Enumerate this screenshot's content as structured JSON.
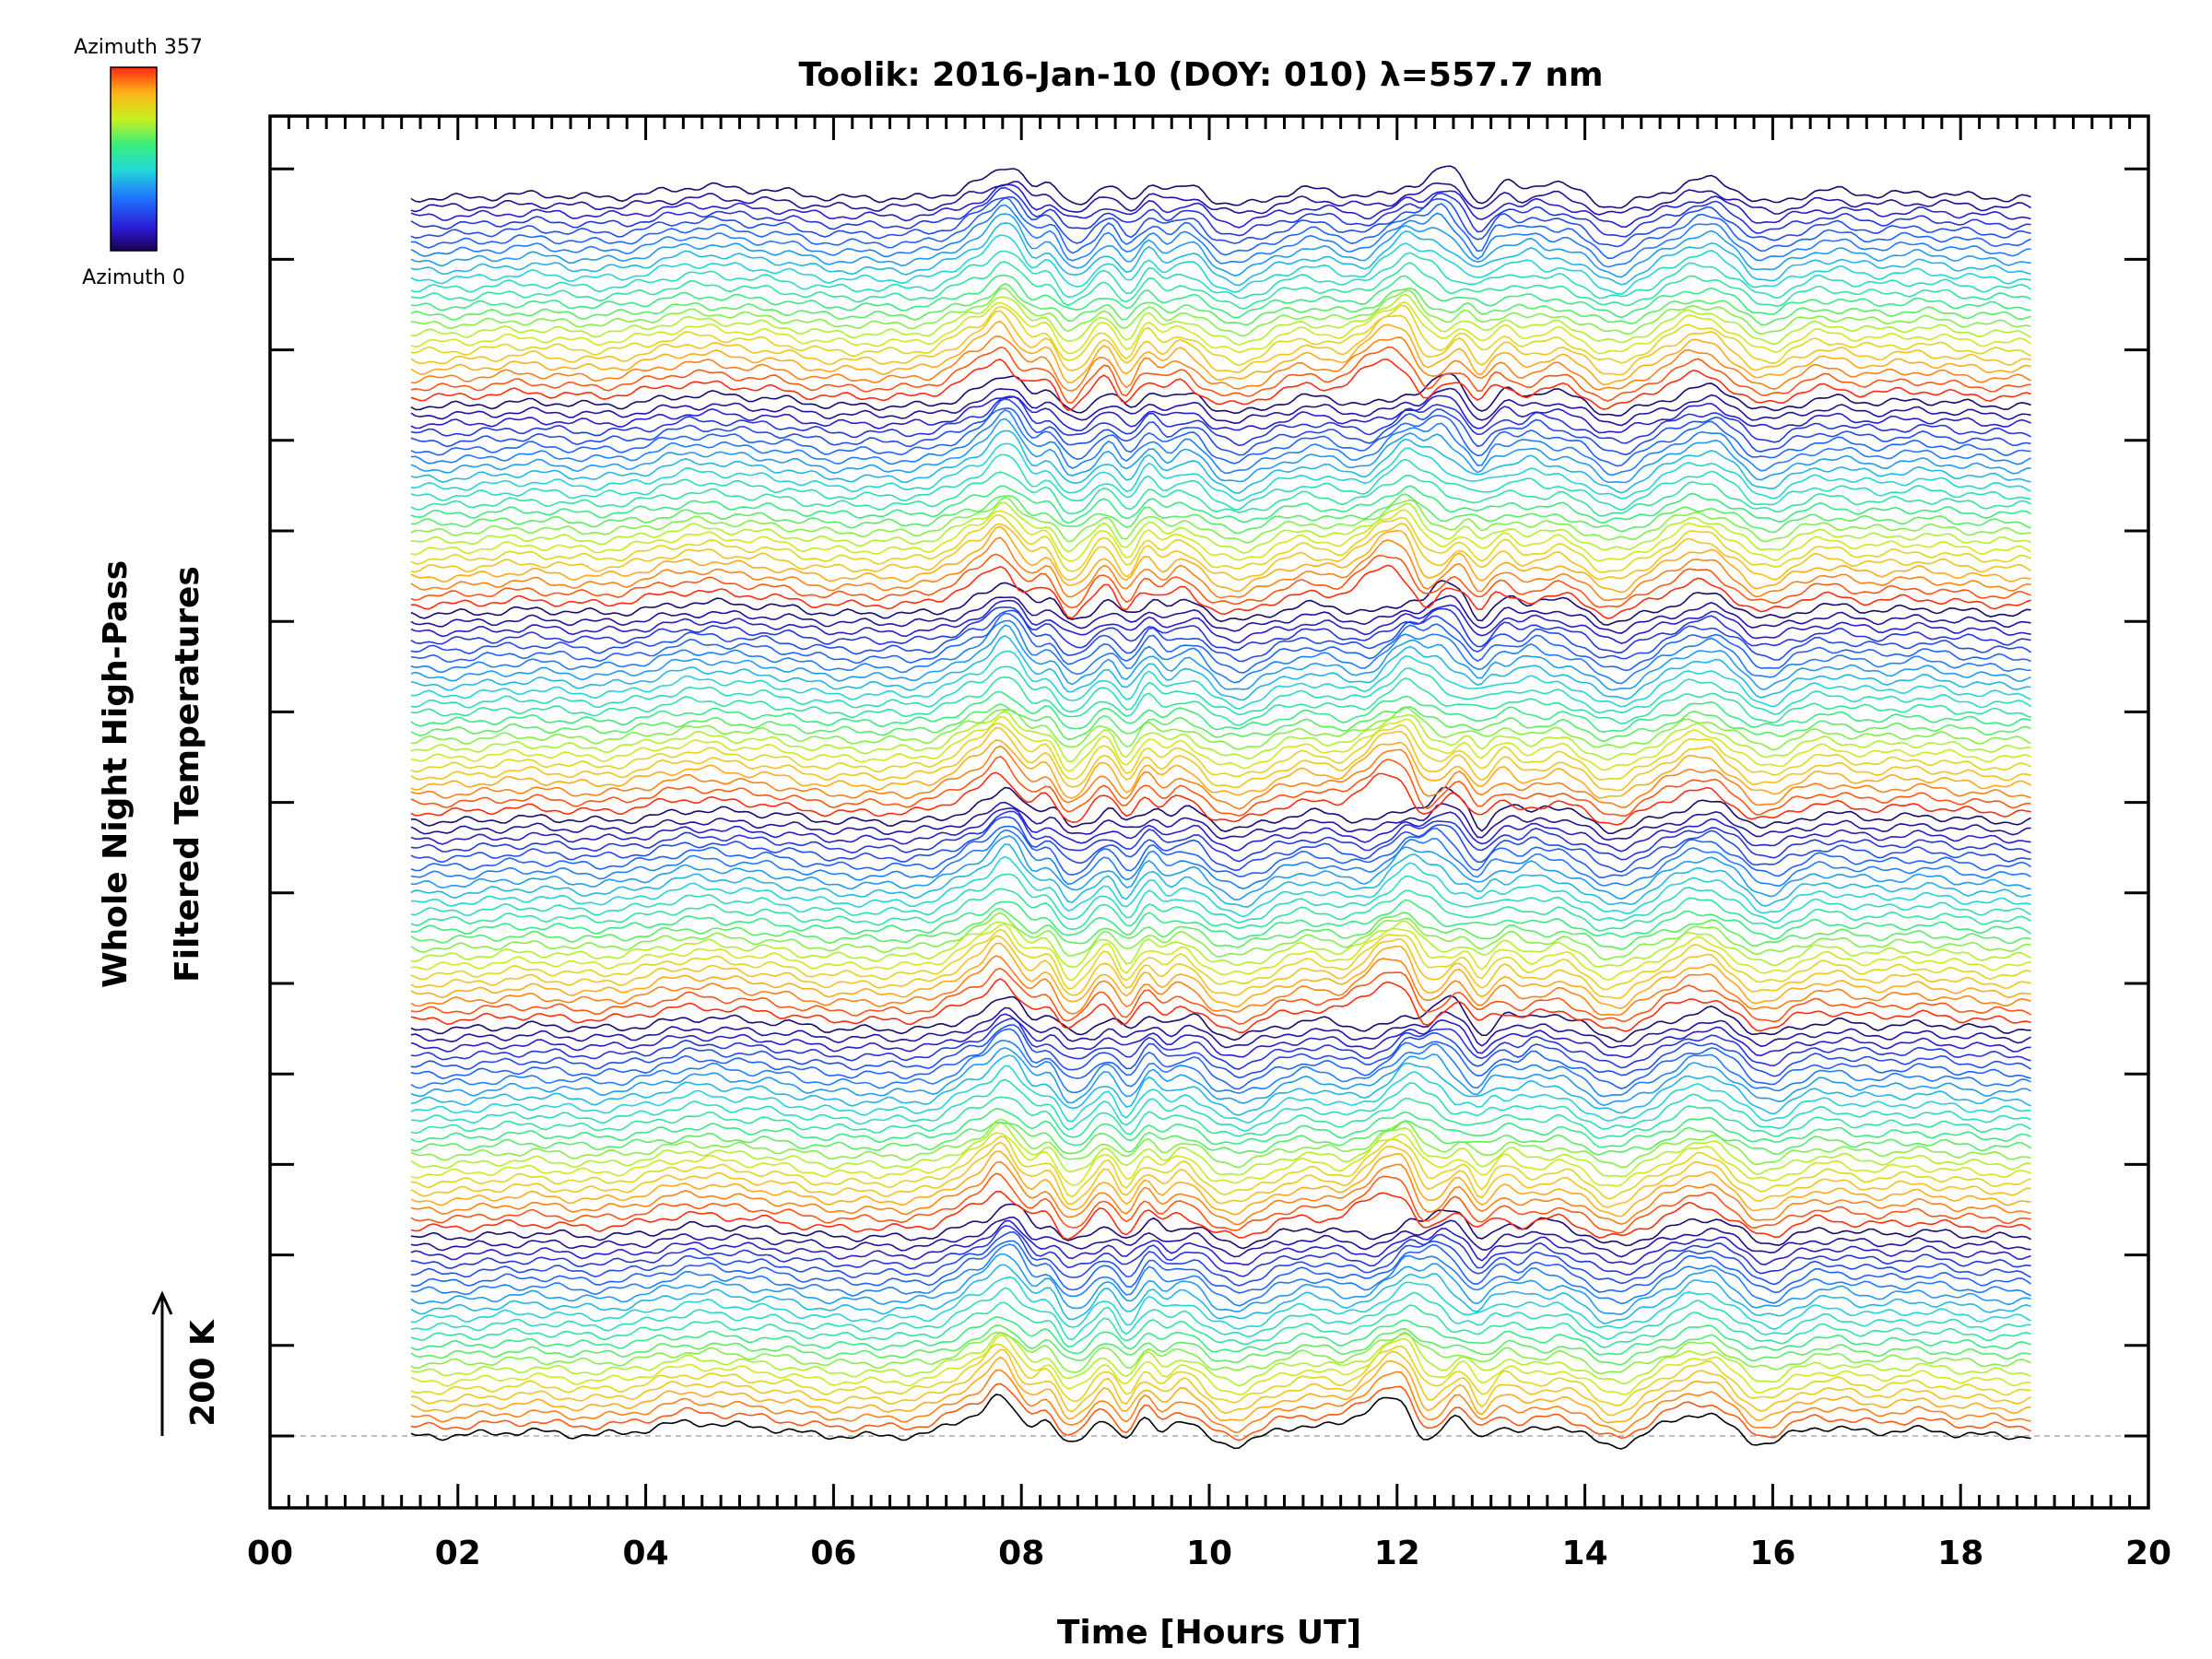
{
  "chart_data": {
    "type": "line",
    "title": "Toolik: 2016-Jan-10 (DOY: 010) λ=557.7 nm",
    "xlabel": "Time [Hours UT]",
    "ylabel_line1": "Whole Night High-Pass",
    "ylabel_line2": "Filtered Temperatures",
    "scale_label": "200 K",
    "xlim": [
      0,
      20
    ],
    "x_tick_labels": [
      "00",
      "02",
      "04",
      "06",
      "08",
      "10",
      "12",
      "14",
      "16",
      "18",
      "20"
    ],
    "x_ticks": [
      0,
      2,
      4,
      6,
      8,
      10,
      12,
      14,
      16,
      18,
      20
    ],
    "y_ticks_count": 15,
    "colorbar": {
      "top_label": "Azimuth 357",
      "bottom_label": "Azimuth 0",
      "min": 0,
      "max": 357,
      "colormap": "rainbow"
    },
    "series_layout": {
      "description_count": 138,
      "time_start": 1.5,
      "time_end": 18.75,
      "azimuth_sweeps": 6
    },
    "baseline_style": "dashed gray",
    "colors": {
      "axis": "#000000",
      "baseline": "#aaaaaa"
    }
  }
}
